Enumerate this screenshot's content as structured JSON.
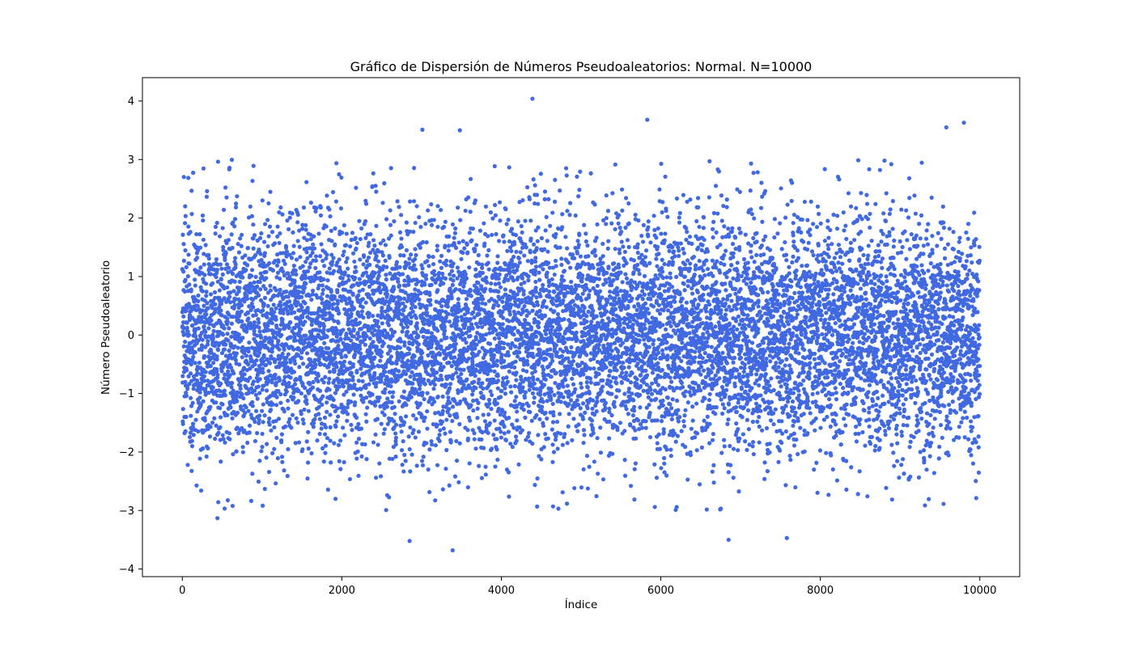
{
  "chart_data": {
    "type": "scatter",
    "title": "Gráfico de Dispersión de Números Pseudoaleatorios: Normal. N=10000",
    "xlabel": "Índice",
    "ylabel": "Número Pseudoaleatorio",
    "n": 10000,
    "distribution": "normal",
    "mean": 0,
    "std": 1,
    "xlim": [
      -500,
      10500
    ],
    "ylim": [
      -4.13,
      4.4
    ],
    "xticks": [
      0,
      2000,
      4000,
      6000,
      8000,
      10000
    ],
    "yticks": [
      -4,
      -3,
      -2,
      -1,
      0,
      1,
      2,
      3,
      4
    ],
    "point_color": "#4169e1",
    "grid": false,
    "notable_points": [
      {
        "x": 4390,
        "y": 4.04
      },
      {
        "x": 3390,
        "y": -3.68
      },
      {
        "x": 5830,
        "y": 3.68
      },
      {
        "x": 9800,
        "y": 3.63
      },
      {
        "x": 2850,
        "y": -3.52
      },
      {
        "x": 6850,
        "y": -3.5
      },
      {
        "x": 7580,
        "y": -3.47
      },
      {
        "x": 9580,
        "y": 3.55
      },
      {
        "x": 3010,
        "y": 3.51
      },
      {
        "x": 3480,
        "y": 3.5
      },
      {
        "x": 440,
        "y": -3.13
      }
    ]
  }
}
